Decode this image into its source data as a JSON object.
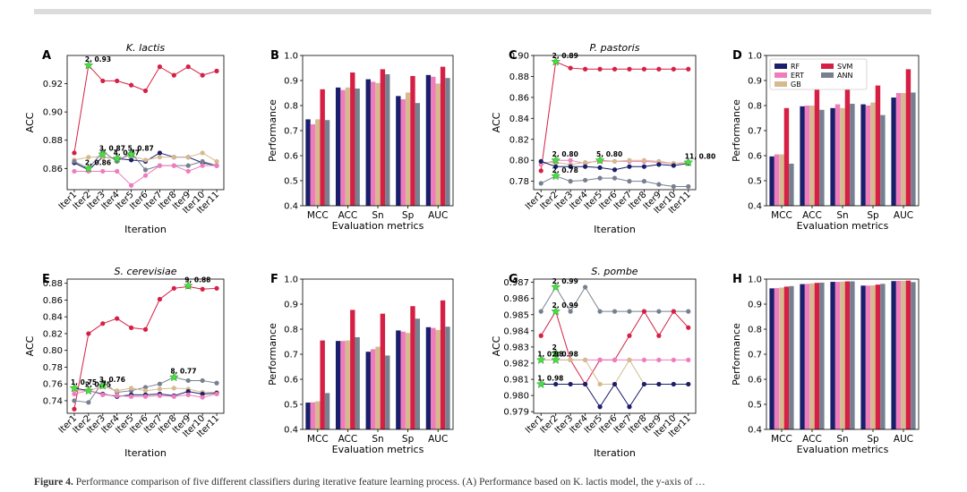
{
  "caption": {
    "label": "Figure 4.",
    "text": "Performance comparison of five different classifiers during iterative feature learning process. (A) Performance based on K. lactis model, the y-axis of …"
  },
  "colors": {
    "RF": "#1b1f6b",
    "ERT": "#f07cbd",
    "GB": "#d6b98e",
    "SVM": "#d61f44",
    "ANN": "#76808f",
    "highlight": "#46e040"
  },
  "legend": [
    "RF",
    "SVM",
    "ERT",
    "GB",
    "ANN"
  ],
  "chart_data": [
    {
      "type": "line",
      "panel": "A",
      "title": "K. lactis",
      "xlabel": "Iteration",
      "ylabel": "ACC",
      "ylim": [
        0.845,
        0.94
      ],
      "yticks": [
        0.86,
        0.88,
        0.9,
        0.92
      ],
      "categories": [
        "Iter1",
        "Iter2",
        "Iter3",
        "Iter4",
        "Iter5",
        "Iter6",
        "Iter7",
        "Iter8",
        "Iter9",
        "Iter10",
        "Iter11"
      ],
      "series": [
        {
          "name": "SVM",
          "values": [
            0.871,
            0.933,
            0.922,
            0.922,
            0.919,
            0.915,
            0.932,
            0.926,
            0.932,
            0.926,
            0.929
          ]
        },
        {
          "name": "RF",
          "values": [
            0.864,
            0.859,
            0.868,
            0.867,
            0.866,
            0.865,
            0.871,
            0.868,
            0.868,
            0.864,
            0.862
          ]
        },
        {
          "name": "GB",
          "values": [
            0.866,
            0.868,
            0.868,
            0.867,
            0.869,
            0.866,
            0.868,
            0.868,
            0.868,
            0.871,
            0.865
          ]
        },
        {
          "name": "ANN",
          "values": [
            0.865,
            0.86,
            0.872,
            0.865,
            0.871,
            0.859,
            0.862,
            0.862,
            0.862,
            0.865,
            0.862
          ]
        },
        {
          "name": "ERT",
          "values": [
            0.858,
            0.858,
            0.858,
            0.858,
            0.848,
            0.855,
            0.862,
            0.862,
            0.858,
            0.862,
            0.862
          ]
        }
      ],
      "annotations": [
        {
          "text": "2, 0.93",
          "x": 1,
          "y": 0.933
        },
        {
          "text": "2, 0.86",
          "x": 1,
          "y": 0.86
        },
        {
          "text": "3, 0.87",
          "x": 2,
          "y": 0.87
        },
        {
          "text": "4, 0.87",
          "x": 3,
          "y": 0.867
        },
        {
          "text": "5, 0.87",
          "x": 4,
          "y": 0.87
        }
      ]
    },
    {
      "type": "bar",
      "panel": "B",
      "title": "",
      "xlabel": "Evaluation metrics",
      "ylabel": "Performance",
      "ylim": [
        0.4,
        1.0
      ],
      "yticks": [
        0.4,
        0.5,
        0.6,
        0.7,
        0.8,
        0.9,
        1.0
      ],
      "categories": [
        "MCC",
        "ACC",
        "Sn",
        "Sp",
        "AUC"
      ],
      "series": [
        {
          "name": "RF",
          "values": [
            0.745,
            0.872,
            0.905,
            0.838,
            0.922
          ]
        },
        {
          "name": "ERT",
          "values": [
            0.725,
            0.862,
            0.895,
            0.825,
            0.915
          ]
        },
        {
          "name": "GB",
          "values": [
            0.745,
            0.872,
            0.89,
            0.852,
            0.888
          ]
        },
        {
          "name": "SVM",
          "values": [
            0.865,
            0.932,
            0.945,
            0.918,
            0.955
          ]
        },
        {
          "name": "ANN",
          "values": [
            0.742,
            0.868,
            0.925,
            0.81,
            0.91
          ]
        }
      ]
    },
    {
      "type": "line",
      "panel": "C",
      "title": "P. pastoris",
      "xlabel": "Iteration",
      "ylabel": "ACC",
      "ylim": [
        0.772,
        0.9
      ],
      "yticks": [
        0.78,
        0.8,
        0.82,
        0.84,
        0.86,
        0.88,
        0.9
      ],
      "categories": [
        "Iter1",
        "Iter2",
        "Iter3",
        "Iter4",
        "Iter5",
        "Iter6",
        "Iter7",
        "Iter8",
        "Iter9",
        "Iter10",
        "Iter11"
      ],
      "series": [
        {
          "name": "SVM",
          "values": [
            0.79,
            0.894,
            0.888,
            0.887,
            0.887,
            0.887,
            0.887,
            0.887,
            0.887,
            0.887,
            0.887
          ]
        },
        {
          "name": "ERT",
          "values": [
            0.796,
            0.8,
            0.8,
            0.797,
            0.8,
            0.799,
            0.799,
            0.799,
            0.798,
            0.797,
            0.798
          ]
        },
        {
          "name": "GB",
          "values": [
            0.798,
            0.798,
            0.796,
            0.798,
            0.799,
            0.799,
            0.8,
            0.8,
            0.799,
            0.797,
            0.798
          ]
        },
        {
          "name": "RF",
          "values": [
            0.799,
            0.794,
            0.794,
            0.794,
            0.793,
            0.791,
            0.794,
            0.794,
            0.796,
            0.795,
            0.797
          ]
        },
        {
          "name": "ANN",
          "values": [
            0.778,
            0.785,
            0.78,
            0.781,
            0.783,
            0.783,
            0.78,
            0.78,
            0.777,
            0.775,
            0.775
          ]
        }
      ],
      "annotations": [
        {
          "text": "2, 0.89",
          "x": 1,
          "y": 0.894
        },
        {
          "text": "2, 0.80",
          "x": 1,
          "y": 0.8
        },
        {
          "text": "2, 0.78",
          "x": 1,
          "y": 0.785
        },
        {
          "text": "5, 0.80",
          "x": 4,
          "y": 0.8
        },
        {
          "text": "11, 0.80",
          "x": 10,
          "y": 0.798
        }
      ]
    },
    {
      "type": "bar",
      "panel": "D",
      "title": "",
      "xlabel": "Evaluation metrics",
      "ylabel": "Performance",
      "ylim": [
        0.4,
        1.0
      ],
      "yticks": [
        0.4,
        0.5,
        0.6,
        0.7,
        0.8,
        0.9,
        1.0
      ],
      "categories": [
        "MCC",
        "ACC",
        "Sn",
        "Sp",
        "AUC"
      ],
      "legend_loc": "top-left",
      "series": [
        {
          "name": "RF",
          "values": [
            0.597,
            0.797,
            0.79,
            0.805,
            0.832
          ]
        },
        {
          "name": "ERT",
          "values": [
            0.605,
            0.8,
            0.805,
            0.8,
            0.85
          ]
        },
        {
          "name": "GB",
          "values": [
            0.605,
            0.8,
            0.79,
            0.812,
            0.85
          ]
        },
        {
          "name": "SVM",
          "values": [
            0.79,
            0.895,
            0.91,
            0.88,
            0.945
          ]
        },
        {
          "name": "ANN",
          "values": [
            0.568,
            0.783,
            0.807,
            0.762,
            0.852
          ]
        }
      ]
    },
    {
      "type": "line",
      "panel": "E",
      "title": "S. cerevisiae",
      "xlabel": "Iteration",
      "ylabel": "ACC",
      "ylim": [
        0.725,
        0.885
      ],
      "yticks": [
        0.74,
        0.76,
        0.78,
        0.8,
        0.82,
        0.84,
        0.86,
        0.88
      ],
      "categories": [
        "Iter1",
        "Iter2",
        "Iter3",
        "Iter4",
        "Iter5",
        "Iter6",
        "Iter7",
        "Iter8",
        "Iter9",
        "Iter10",
        "Iter11"
      ],
      "series": [
        {
          "name": "SVM",
          "values": [
            0.73,
            0.82,
            0.832,
            0.838,
            0.827,
            0.825,
            0.861,
            0.874,
            0.876,
            0.873,
            0.874
          ]
        },
        {
          "name": "ANN",
          "values": [
            0.74,
            0.738,
            0.762,
            0.75,
            0.752,
            0.756,
            0.76,
            0.768,
            0.764,
            0.764,
            0.761
          ]
        },
        {
          "name": "GB",
          "values": [
            0.752,
            0.752,
            0.757,
            0.752,
            0.755,
            0.752,
            0.754,
            0.755,
            0.754,
            0.75,
            0.75
          ]
        },
        {
          "name": "RF",
          "values": [
            0.755,
            0.752,
            0.748,
            0.745,
            0.747,
            0.747,
            0.748,
            0.746,
            0.751,
            0.748,
            0.749
          ]
        },
        {
          "name": "ERT",
          "values": [
            0.748,
            0.752,
            0.747,
            0.746,
            0.745,
            0.745,
            0.746,
            0.745,
            0.747,
            0.744,
            0.748
          ]
        }
      ],
      "annotations": [
        {
          "text": "9, 0.88",
          "x": 8,
          "y": 0.877
        },
        {
          "text": "8, 0.77",
          "x": 7,
          "y": 0.768
        },
        {
          "text": "3, 0.76",
          "x": 2,
          "y": 0.758
        },
        {
          "text": "1, 0.75",
          "x": 0,
          "y": 0.755
        },
        {
          "text": "2, 0.75",
          "x": 1,
          "y": 0.752
        }
      ]
    },
    {
      "type": "bar",
      "panel": "F",
      "title": "",
      "xlabel": "Evaluation metrics",
      "ylabel": "Performance",
      "ylim": [
        0.4,
        1.0
      ],
      "yticks": [
        0.4,
        0.5,
        0.6,
        0.7,
        0.8,
        0.9,
        1.0
      ],
      "categories": [
        "MCC",
        "ACC",
        "Sn",
        "Sp",
        "AUC"
      ],
      "series": [
        {
          "name": "RF",
          "values": [
            0.507,
            0.753,
            0.71,
            0.795,
            0.808
          ]
        },
        {
          "name": "ERT",
          "values": [
            0.508,
            0.753,
            0.72,
            0.79,
            0.805
          ]
        },
        {
          "name": "GB",
          "values": [
            0.512,
            0.755,
            0.73,
            0.785,
            0.797
          ]
        },
        {
          "name": "SVM",
          "values": [
            0.755,
            0.877,
            0.862,
            0.892,
            0.915
          ]
        },
        {
          "name": "ANN",
          "values": [
            0.545,
            0.768,
            0.695,
            0.842,
            0.81
          ]
        }
      ]
    },
    {
      "type": "line",
      "panel": "G",
      "title": "S. pombe",
      "xlabel": "Iteration",
      "ylabel": "ACC",
      "ylim": [
        0.9789,
        0.9872
      ],
      "yticks": [
        0.979,
        0.98,
        0.981,
        0.982,
        0.983,
        0.984,
        0.985,
        0.986,
        0.987
      ],
      "categories": [
        "Iter1",
        "Iter2",
        "Iter3",
        "Iter4",
        "Iter5",
        "Iter6",
        "Iter7",
        "Iter8",
        "Iter9",
        "Iter10",
        "Iter11"
      ],
      "series": [
        {
          "name": "ANN",
          "values": [
            0.9852,
            0.9867,
            0.9852,
            0.9867,
            0.9852,
            0.9852,
            0.9852,
            0.9852,
            0.9852,
            0.9852,
            0.9852
          ]
        },
        {
          "name": "SVM",
          "values": [
            0.9837,
            0.9852,
            0.9822,
            0.9807,
            0.9822,
            0.9822,
            0.9837,
            0.9852,
            0.9837,
            0.9852,
            0.9842
          ]
        },
        {
          "name": "ERT",
          "values": [
            0.9822,
            0.9822,
            0.9822,
            0.9822,
            0.9822,
            0.9822,
            0.9822,
            0.9822,
            0.9822,
            0.9822,
            0.9822
          ]
        },
        {
          "name": "GB",
          "values": [
            0.9822,
            0.9822,
            0.9822,
            0.9822,
            0.9807,
            0.9807,
            0.9822,
            0.9807,
            0.9807,
            0.9807,
            0.9807
          ]
        },
        {
          "name": "RF",
          "values": [
            0.9807,
            0.9807,
            0.9807,
            0.9807,
            0.9793,
            0.9807,
            0.9793,
            0.9807,
            0.9807,
            0.9807,
            0.9807
          ]
        }
      ],
      "annotations": [
        {
          "text": "2, 0.99",
          "x": 1,
          "y": 0.9867
        },
        {
          "text": "2, 0.99",
          "x": 1,
          "y": 0.9852
        },
        {
          "text": "2",
          "x": 1,
          "y": 0.9826
        },
        {
          "text": "1, 0.98",
          "x": 0,
          "y": 0.9822
        },
        {
          "text": "2, 0.98",
          "x": 1,
          "y": 0.9822
        },
        {
          "text": "1, 0.98",
          "x": 0,
          "y": 0.9807
        }
      ]
    },
    {
      "type": "bar",
      "panel": "H",
      "title": "",
      "xlabel": "Evaluation metrics",
      "ylabel": "Performance",
      "ylim": [
        0.4,
        1.0
      ],
      "yticks": [
        0.4,
        0.5,
        0.6,
        0.7,
        0.8,
        0.9,
        1.0
      ],
      "categories": [
        "MCC",
        "ACC",
        "Sn",
        "Sp",
        "AUC"
      ],
      "series": [
        {
          "name": "RF",
          "values": [
            0.963,
            0.98,
            0.989,
            0.974,
            0.992
          ]
        },
        {
          "name": "ERT",
          "values": [
            0.964,
            0.981,
            0.989,
            0.974,
            0.993
          ]
        },
        {
          "name": "GB",
          "values": [
            0.966,
            0.983,
            0.99,
            0.975,
            0.993
          ]
        },
        {
          "name": "SVM",
          "values": [
            0.97,
            0.985,
            0.991,
            0.978,
            0.994
          ]
        },
        {
          "name": "ANN",
          "values": [
            0.972,
            0.986,
            0.991,
            0.981,
            0.988
          ]
        }
      ]
    }
  ]
}
